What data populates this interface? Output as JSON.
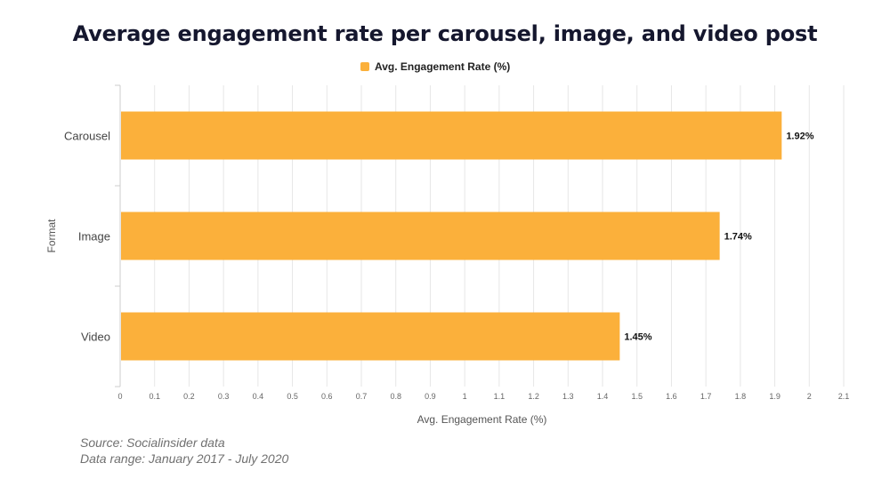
{
  "chart_data": {
    "type": "bar",
    "orientation": "horizontal",
    "title": "Average engagement rate per carousel, image, and video post",
    "categories": [
      "Carousel",
      "Image",
      "Video"
    ],
    "series": [
      {
        "name": "Avg. Engagement Rate (%)",
        "values": [
          1.92,
          1.74,
          1.45
        ],
        "data_labels": [
          "1.92%",
          "1.74%",
          "1.45%"
        ],
        "color": "#fbb03b"
      }
    ],
    "xlabel": "Avg. Engagement Rate (%)",
    "ylabel": "Format",
    "xlim": [
      0,
      2.1
    ],
    "x_ticks": [
      "0",
      "0.1",
      "0.2",
      "0.3",
      "0.4",
      "0.5",
      "0.6",
      "0.7",
      "0.8",
      "0.9",
      "1",
      "1.1",
      "1.2",
      "1.3",
      "1.4",
      "1.5",
      "1.6",
      "1.7",
      "1.8",
      "1.9",
      "2",
      "2.1"
    ],
    "grid": true,
    "legend_position": "top-center"
  },
  "footnotes": {
    "source": "Source: Socialinsider data",
    "range": "Data range: January 2017 - July 2020"
  },
  "colors": {
    "bar": "#fbb03b",
    "grid": "#e6e6e6",
    "title": "#15172e"
  }
}
